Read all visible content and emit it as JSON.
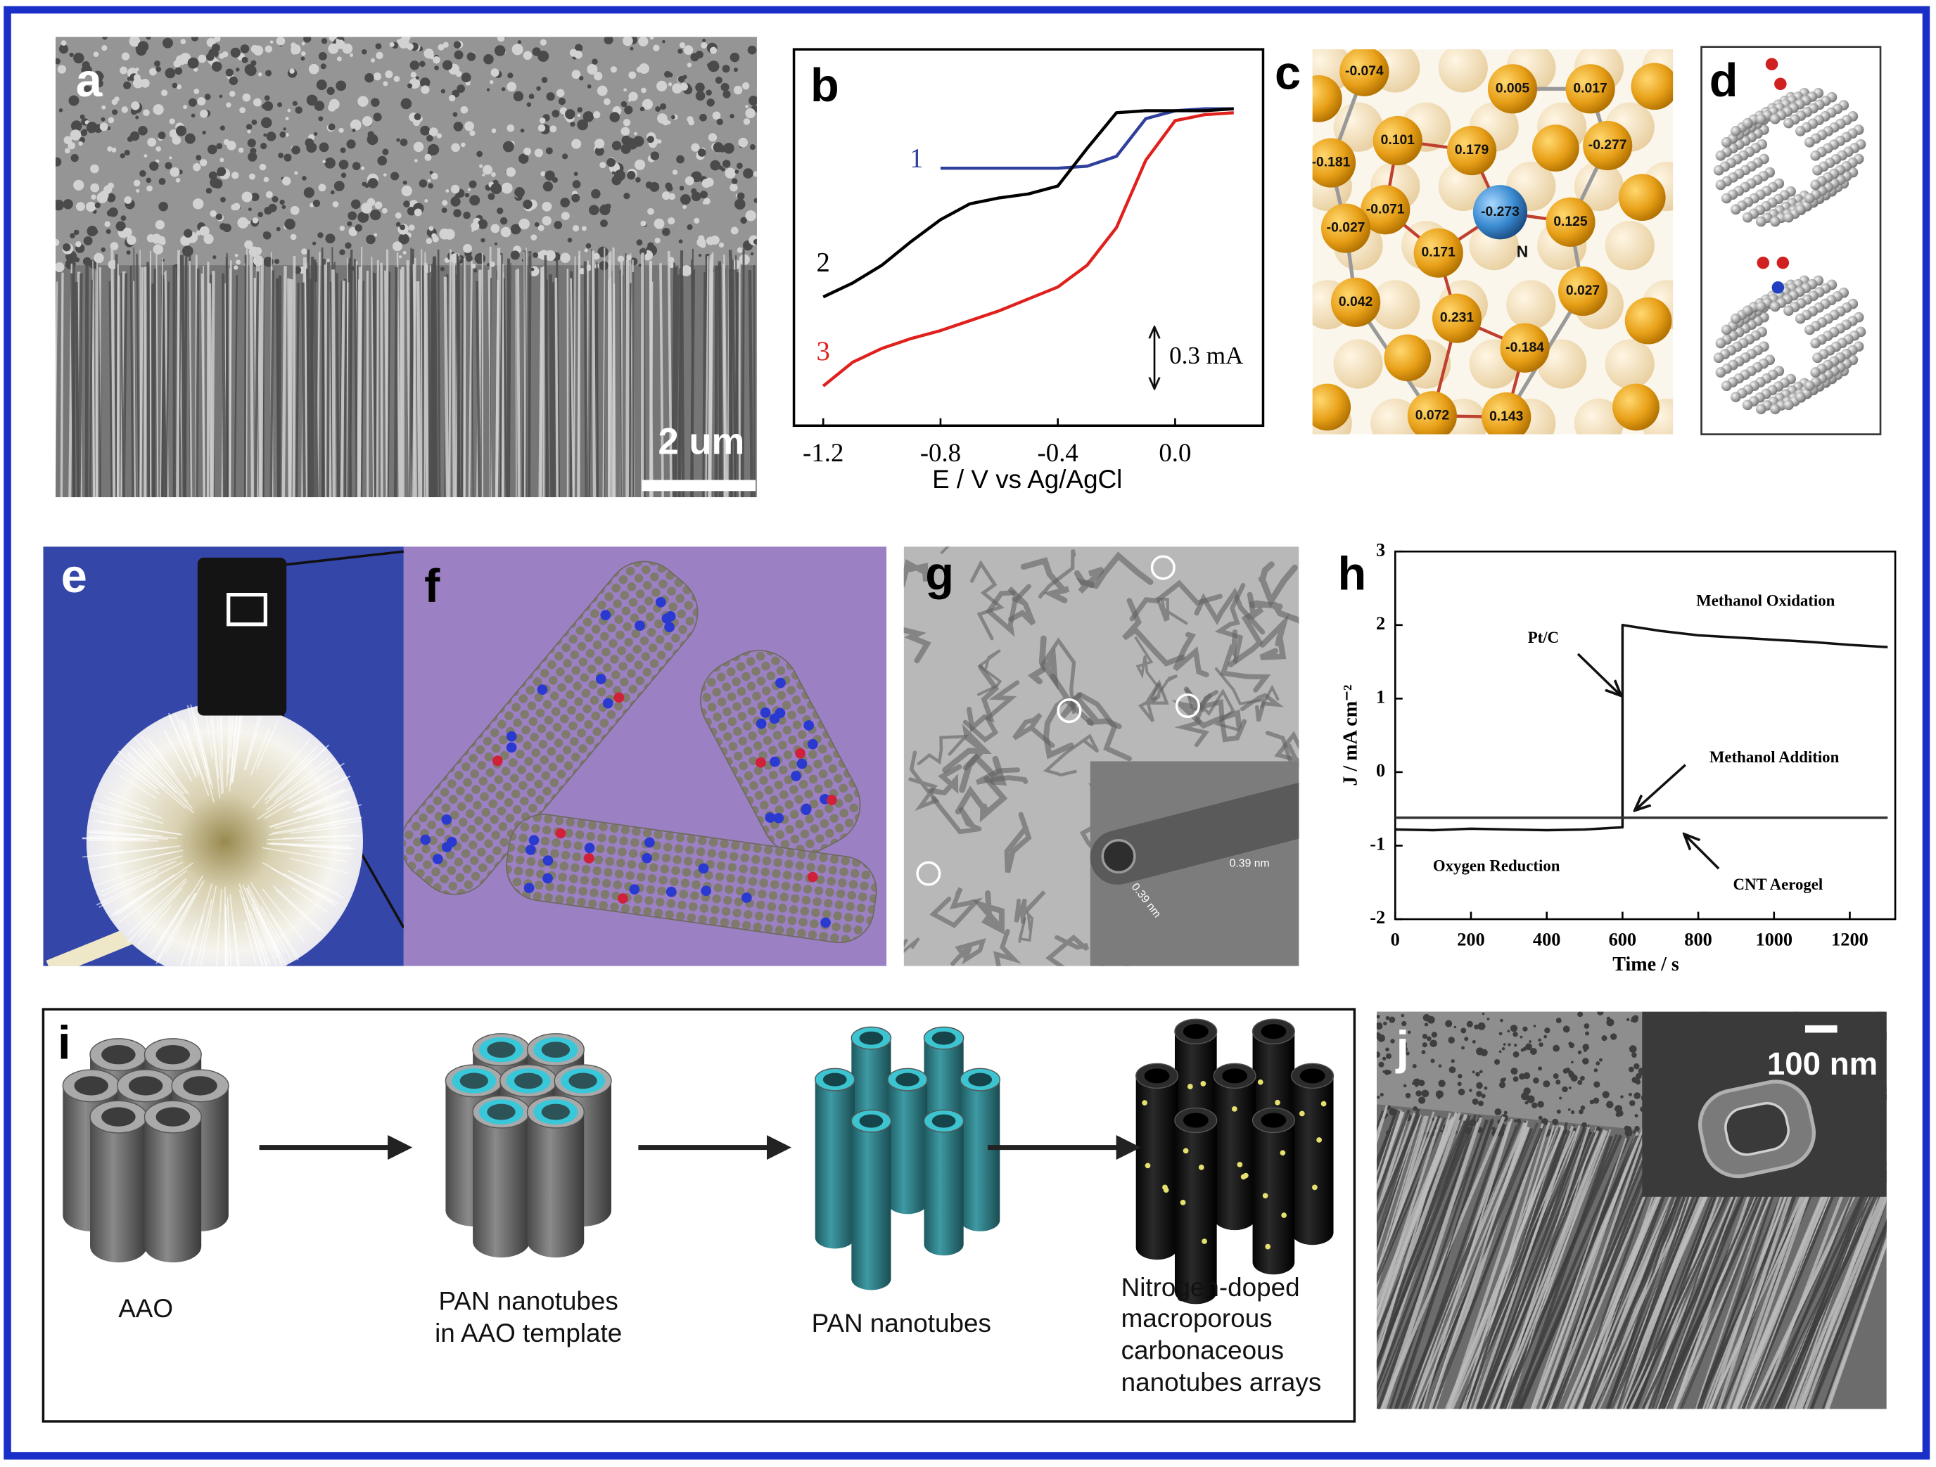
{
  "chart_data": [
    {
      "type": "line",
      "panel_label": "b",
      "x": [
        -1.2,
        -1.1,
        -1,
        -0.9,
        -0.8,
        -0.7,
        -0.6,
        -0.5,
        -0.4,
        -0.3,
        -0.2,
        -0.1,
        0,
        0.1,
        0.2
      ],
      "series": [
        {
          "name": "1",
          "color": "#2e3f9c",
          "values": [
            null,
            null,
            null,
            null,
            -0.5,
            -0.5,
            -0.5,
            -0.5,
            -0.5,
            -0.49,
            -0.44,
            -0.25,
            -0.21,
            -0.2,
            -0.2
          ]
        },
        {
          "name": "2",
          "color": "#000000",
          "values": [
            -1.15,
            -1.08,
            -0.99,
            -0.87,
            -0.76,
            -0.68,
            -0.65,
            -0.63,
            -0.59,
            -0.4,
            -0.22,
            -0.21,
            -0.21,
            -0.21,
            -0.2
          ]
        },
        {
          "name": "3",
          "color": "#e0201c",
          "values": [
            -1.6,
            -1.48,
            -1.41,
            -1.36,
            -1.32,
            -1.27,
            -1.22,
            -1.16,
            -1.1,
            -0.99,
            -0.8,
            -0.46,
            -0.26,
            -0.23,
            -0.22
          ]
        }
      ],
      "xlim": [
        -1.3,
        0.3
      ],
      "xticks": [
        -1.2,
        -0.8,
        -0.4,
        {
          "value": 0,
          "label": "0.0"
        }
      ],
      "ylim": [
        -1.8,
        0.1
      ],
      "xlabel": "E / V vs Ag/AgCl",
      "scale_bar": {
        "value": 0.3,
        "label": "0.3 mA"
      }
    },
    {
      "type": "line",
      "panel_label": "h",
      "x": [
        0,
        100,
        200,
        300,
        400,
        500,
        600,
        600,
        700,
        800,
        900,
        1000,
        1100,
        1200,
        1300
      ],
      "series": [
        {
          "name": "Pt/C",
          "color": "#111111",
          "values": [
            -0.78,
            -0.79,
            -0.77,
            -0.78,
            -0.79,
            -0.78,
            -0.75,
            2.0,
            1.92,
            1.86,
            1.83,
            1.8,
            1.77,
            1.73,
            1.7
          ]
        },
        {
          "name": "CNT Aerogel",
          "color": "#333333",
          "values": [
            -0.62,
            -0.62,
            -0.62,
            -0.62,
            -0.62,
            -0.62,
            -0.62,
            -0.62,
            -0.62,
            -0.62,
            -0.62,
            -0.62,
            -0.62,
            -0.62,
            -0.62
          ]
        }
      ],
      "xlim": [
        0,
        1320
      ],
      "xticks": [
        0,
        200,
        400,
        600,
        800,
        1000,
        1200
      ],
      "ylim": [
        -2,
        3
      ],
      "yticks": [
        -2,
        -1,
        0,
        1,
        2,
        3
      ],
      "xlabel": "Time / s",
      "ylabel": "J / mA cm⁻²",
      "annotations": [
        "Methanol Oxidation",
        "Methanol Addition",
        "Oxygen Reduction"
      ]
    }
  ],
  "panels": {
    "a": {
      "panel_label": "a",
      "scale_bar_label": "2 um"
    },
    "c": {
      "panel_label": "c",
      "atom_labels": [
        "-0.074",
        "0.005",
        "0.017",
        "-0.181",
        "0.101",
        "0.179",
        "-0.277",
        "-0.071",
        "-0.273",
        "0.125",
        "-0.027",
        "0.171",
        "N",
        "0.042",
        "0.027",
        "0.231",
        "-0.184",
        "0.072",
        "0.143"
      ]
    },
    "d": {
      "panel_label": "d"
    },
    "e": {
      "panel_label": "e"
    },
    "f": {
      "panel_label": "f"
    },
    "g": {
      "panel_label": "g",
      "inset_labels": [
        "0.39 nm",
        "0.39 nm"
      ]
    },
    "i": {
      "panel_label": "i",
      "steps": [
        [
          "AAO"
        ],
        [
          "PAN nanotubes",
          "in AAO template"
        ],
        [
          "PAN nanotubes"
        ],
        [
          "Nitrogen-doped",
          "macroporous",
          "carbonaceous",
          "nanotubes arrays"
        ]
      ]
    },
    "j": {
      "panel_label": "j",
      "inset_scale_label": "100 nm"
    }
  }
}
